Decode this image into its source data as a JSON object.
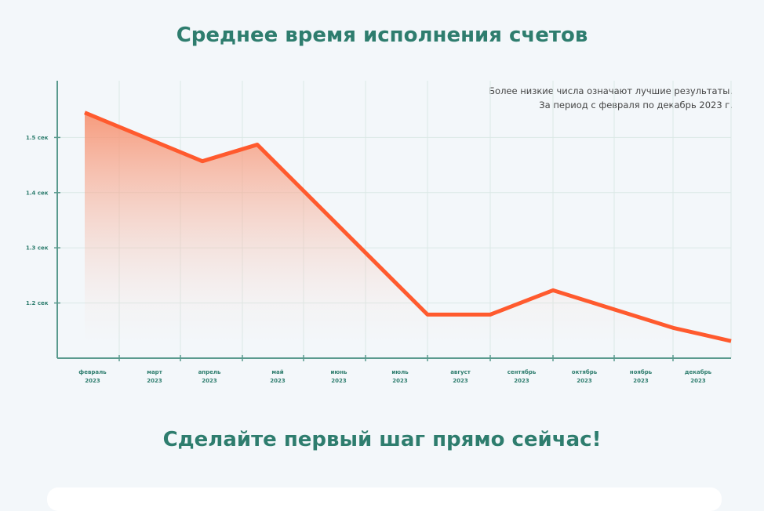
{
  "title": "Среднее время исполнения счетов",
  "cta": "Сделайте первый шаг прямо сейчас!",
  "chart_data": {
    "type": "area",
    "title": "Среднее время исполнения счетов",
    "annotation": [
      "Более низкие числа означают лучшие результаты.",
      "За период с февраля по декабрь 2023 г."
    ],
    "categories": [
      "февраль 2023",
      "март 2023",
      "апрель 2023",
      "май 2023",
      "июнь 2023",
      "июль 2023",
      "август 2023",
      "сентябрь 2023",
      "октябрь 2023",
      "ноябрь 2023",
      "декабрь 2023"
    ],
    "yticks": [
      "1.5 сек",
      "1.4 сек",
      "1.3 сек",
      "1.2 сек"
    ],
    "ytick_values": [
      1.5,
      1.4,
      1.3,
      1.2
    ],
    "ylim": [
      1.1,
      1.6
    ],
    "grid": true,
    "series": [
      {
        "points": [
          {
            "x": "февраль 2023",
            "y": 1.545
          },
          {
            "x": "апрель 2023",
            "y": 1.457
          },
          {
            "x": "май 2023",
            "y": 1.487
          },
          {
            "x": "июль 2023",
            "y": 1.179
          },
          {
            "x": "август 2023",
            "y": 1.179
          },
          {
            "x": "сентябрь 2023",
            "y": 1.223
          },
          {
            "x": "ноябрь 2023",
            "y": 1.155
          },
          {
            "x": "декабрь 2023",
            "y": 1.131
          }
        ],
        "color": "#ff5a2e"
      }
    ],
    "axis_color": "#5a9a8e"
  }
}
